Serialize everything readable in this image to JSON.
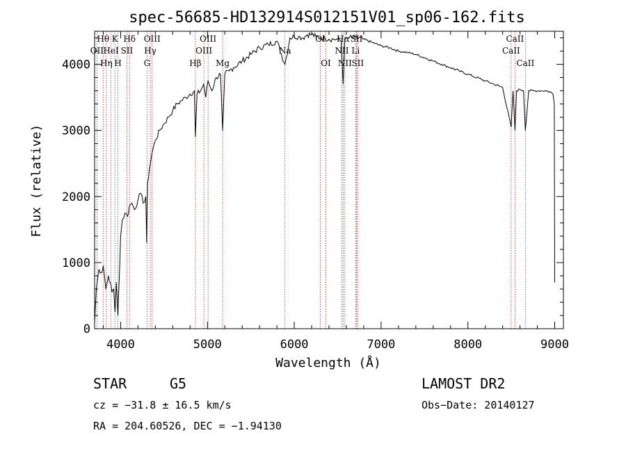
{
  "chart_data": {
    "type": "line",
    "title": "spec-56685-HD132914S012151V01_sp06-162.fits",
    "xlabel": "Wavelength (Å)",
    "ylabel": "Flux (relative)",
    "xlim": [
      3700,
      9100
    ],
    "ylim": [
      0,
      4500
    ],
    "xticks": [
      4000,
      5000,
      6000,
      7000,
      8000,
      9000
    ],
    "yticks": [
      0,
      1000,
      2000,
      3000,
      4000
    ],
    "xtick_labels": [
      "4000",
      "5000",
      "6000",
      "7000",
      "8000",
      "9000"
    ],
    "ytick_labels": [
      "0",
      "1000",
      "2000",
      "3000",
      "4000"
    ],
    "series": [
      {
        "x": [
          3700,
          3720,
          3750,
          3780,
          3800,
          3830,
          3860,
          3880,
          3900,
          3920,
          3935,
          3950,
          3968,
          3985,
          4000,
          4020,
          4050,
          4080,
          4100,
          4130,
          4160,
          4200,
          4230,
          4260,
          4290,
          4300,
          4310,
          4330,
          4360,
          4400,
          4450,
          4500,
          4550,
          4600,
          4650,
          4700,
          4750,
          4800,
          4850,
          4861,
          4880,
          4920,
          4957,
          4980,
          5007,
          5050,
          5100,
          5150,
          5175,
          5200,
          5250,
          5300,
          5400,
          5500,
          5600,
          5700,
          5800,
          5893,
          5950,
          6000,
          6050,
          6100,
          6150,
          6200,
          6250,
          6300,
          6350,
          6400,
          6450,
          6500,
          6540,
          6563,
          6580,
          6620,
          6700,
          6800,
          6900,
          7000,
          7100,
          7200,
          7300,
          7400,
          7500,
          7600,
          7700,
          7800,
          7900,
          8000,
          8100,
          8200,
          8300,
          8400,
          8498,
          8520,
          8542,
          8560,
          8600,
          8640,
          8662,
          8700,
          8750,
          8800,
          8850,
          8900,
          8950,
          8980,
          8995,
          9000
        ],
        "y": [
          100,
          600,
          900,
          850,
          950,
          600,
          800,
          700,
          550,
          600,
          250,
          700,
          200,
          800,
          1400,
          1650,
          1750,
          1700,
          1850,
          1900,
          1800,
          1950,
          2050,
          1900,
          2000,
          1300,
          2200,
          2400,
          2650,
          2850,
          3000,
          3100,
          3200,
          3300,
          3400,
          3450,
          3500,
          3550,
          3600,
          2900,
          3550,
          3600,
          3700,
          3500,
          3750,
          3600,
          3800,
          3850,
          3000,
          3850,
          3900,
          3950,
          4050,
          4150,
          4250,
          4300,
          4350,
          4000,
          4400,
          4420,
          4420,
          4400,
          4450,
          4450,
          4420,
          4400,
          4400,
          4380,
          4380,
          4380,
          4350,
          3700,
          4350,
          4400,
          4400,
          4380,
          4330,
          4280,
          4250,
          4200,
          4180,
          4150,
          4100,
          4050,
          4000,
          3950,
          3900,
          3850,
          3800,
          3750,
          3700,
          3650,
          3050,
          3600,
          3000,
          3600,
          3620,
          3600,
          3000,
          3600,
          3600,
          3600,
          3600,
          3600,
          3580,
          3550,
          3400,
          700
        ]
      }
    ],
    "line_labels": [
      {
        "name": "Hθ",
        "x": 3798,
        "row": 1
      },
      {
        "name": "OII",
        "x": 3727,
        "row": 2
      },
      {
        "name": "K",
        "x": 3934,
        "row": 1
      },
      {
        "name": "HeI",
        "x": 3889,
        "row": 2
      },
      {
        "name": "Hη",
        "x": 3835,
        "row": 3
      },
      {
        "name": "H",
        "x": 3969,
        "row": 3
      },
      {
        "name": "Hδ",
        "x": 4102,
        "row": 1
      },
      {
        "name": "SII",
        "x": 4072,
        "row": 2
      },
      {
        "name": "OIII",
        "x": 4363,
        "row": 1
      },
      {
        "name": "Hγ",
        "x": 4341,
        "row": 2
      },
      {
        "name": "G",
        "x": 4304,
        "row": 3
      },
      {
        "name": "Hβ",
        "x": 4861,
        "row": 3
      },
      {
        "name": "OIII",
        "x": 5007,
        "row": 1
      },
      {
        "name": "OIII",
        "x": 4959,
        "row": 2
      },
      {
        "name": "Mg",
        "x": 5175,
        "row": 3
      },
      {
        "name": "Na",
        "x": 5893,
        "row": 2
      },
      {
        "name": "OI",
        "x": 6300,
        "row": 1
      },
      {
        "name": "OI",
        "x": 6364,
        "row": 3
      },
      {
        "name": "Hα",
        "x": 6563,
        "row": 1
      },
      {
        "name": "NII",
        "x": 6548,
        "row": 2
      },
      {
        "name": "NII",
        "x": 6583,
        "row": 3
      },
      {
        "name": "SII",
        "x": 6717,
        "row": 1
      },
      {
        "name": "Li",
        "x": 6707,
        "row": 2
      },
      {
        "name": "SII",
        "x": 6731,
        "row": 3
      },
      {
        "name": "CaII",
        "x": 8542,
        "row": 1
      },
      {
        "name": "CaII",
        "x": 8498,
        "row": 2
      },
      {
        "name": "CaII",
        "x": 8662,
        "row": 3
      }
    ],
    "grid": false,
    "legend": "none"
  },
  "info": {
    "object_type": "STAR",
    "subclass": "G5",
    "survey": "LAMOST DR2",
    "cz": "cz = −31.8 ± 16.5 km/s",
    "obs_date": "Obs−Date: 20140127",
    "coords": "RA = 204.60526, DEC =  −1.94130"
  }
}
